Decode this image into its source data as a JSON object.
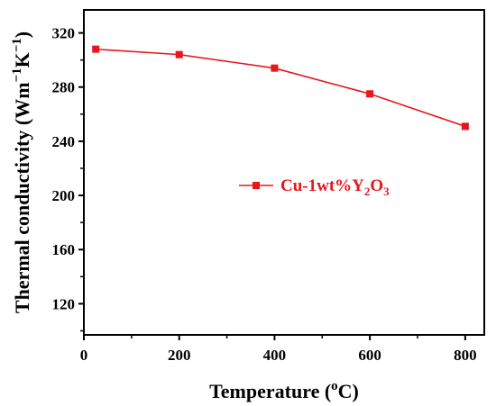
{
  "chart_data": {
    "type": "line",
    "x": [
      25,
      200,
      400,
      600,
      800
    ],
    "series": [
      {
        "name": "Cu-1wt%Y2O3",
        "name_parts": [
          {
            "text": "Cu-1wt%Y",
            "sub": false
          },
          {
            "text": "2",
            "sub": true
          },
          {
            "text": "O",
            "sub": false
          },
          {
            "text": "3",
            "sub": true
          }
        ],
        "values": [
          308,
          304,
          294,
          275,
          251
        ],
        "color": "#e8151b",
        "marker": "square"
      }
    ],
    "xlabel_parts": [
      {
        "text": "Temperature (",
        "sup": false
      },
      {
        "text": "o",
        "sup": true
      },
      {
        "text": "C)",
        "sup": false
      }
    ],
    "ylabel_parts": [
      {
        "text": "Thermal conductivity (Wm",
        "sup": false
      },
      {
        "text": "−1",
        "sup": true
      },
      {
        "text": "K",
        "sup": false
      },
      {
        "text": "−1",
        "sup": true
      },
      {
        "text": ")",
        "sup": false
      }
    ],
    "xlim": [
      0,
      840
    ],
    "ylim": [
      97,
      337
    ],
    "xticks": [
      0,
      200,
      400,
      600,
      800
    ],
    "xticks_labels": [
      "0",
      "200",
      "400",
      "600",
      "800"
    ],
    "yticks": [
      120,
      160,
      200,
      240,
      280,
      320
    ],
    "yticks_labels": [
      "120",
      "160",
      "200",
      "240",
      "280",
      "320"
    ],
    "legend_position": "center-right",
    "grid": false
  }
}
